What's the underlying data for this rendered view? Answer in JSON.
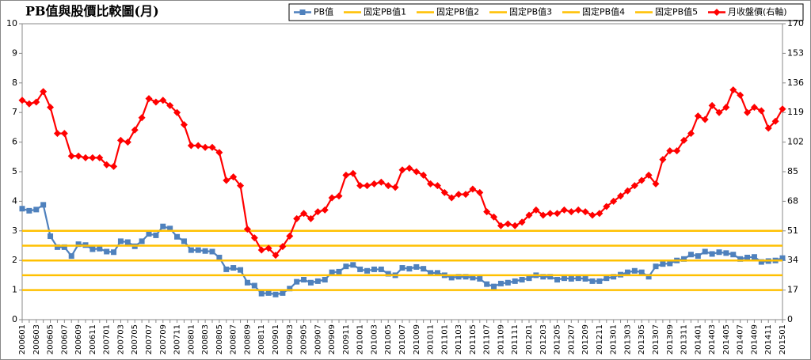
{
  "chart_data": {
    "type": "line",
    "title": "PB值與股價比較圖(月)",
    "legend": "top-right",
    "categories": [
      "200601",
      null,
      "200603",
      null,
      "200605",
      null,
      "200607",
      null,
      "200609",
      null,
      "200611",
      null,
      "200701",
      null,
      "200703",
      null,
      "200705",
      null,
      "200707",
      null,
      "200709",
      null,
      "200711",
      null,
      "200801",
      null,
      "200803",
      null,
      "200805",
      null,
      "200807",
      null,
      "200809",
      null,
      "200811",
      null,
      "200901",
      null,
      "200903",
      null,
      "200905",
      null,
      "200907",
      null,
      "200909",
      null,
      "200911",
      null,
      "201001",
      null,
      "201003",
      null,
      "201005",
      null,
      "201007",
      null,
      "201009",
      null,
      "201011",
      null,
      "201101",
      null,
      "201103",
      null,
      "201105",
      null,
      "201107",
      null,
      "201109",
      null,
      "201111",
      null,
      "201201",
      null,
      "201203",
      null,
      "201205",
      null,
      "201207",
      null,
      "201209",
      null,
      "201211",
      null,
      "201301",
      null,
      "201303",
      null,
      "201305",
      null,
      "201307",
      null,
      "201309",
      null,
      "201311",
      null,
      "201401",
      null,
      "201403",
      null,
      "201405",
      null,
      "201407",
      null,
      "201409",
      null,
      "201411",
      null,
      "201501"
    ],
    "ylim": [
      0,
      10
    ],
    "yticks": [
      0,
      1,
      2,
      3,
      4,
      5,
      6,
      7,
      8,
      9,
      10
    ],
    "y2lim": [
      0,
      170
    ],
    "y2ticks": [
      0,
      17,
      34,
      51,
      68,
      85,
      102,
      119,
      136,
      153,
      170
    ],
    "series": [
      {
        "name": "PB值",
        "color": "#4f81bd",
        "marker": "square",
        "values": [
          3.75,
          3.68,
          3.72,
          3.88,
          2.82,
          2.45,
          2.45,
          2.15,
          2.55,
          2.52,
          2.38,
          2.4,
          2.3,
          2.28,
          2.65,
          2.62,
          2.48,
          2.65,
          2.9,
          2.85,
          3.15,
          3.08,
          2.8,
          2.65,
          2.35,
          2.35,
          2.32,
          2.3,
          2.1,
          1.7,
          1.75,
          1.68,
          1.25,
          1.15,
          0.88,
          0.9,
          0.85,
          0.9,
          1.05,
          1.28,
          1.35,
          1.25,
          1.3,
          1.35,
          1.6,
          1.62,
          1.8,
          1.85,
          1.7,
          1.65,
          1.7,
          1.7,
          1.55,
          1.5,
          1.75,
          1.72,
          1.78,
          1.72,
          1.58,
          1.58,
          1.5,
          1.42,
          1.45,
          1.45,
          1.42,
          1.38,
          1.2,
          1.12,
          1.22,
          1.25,
          1.3,
          1.35,
          1.4,
          1.5,
          1.45,
          1.45,
          1.35,
          1.4,
          1.38,
          1.4,
          1.38,
          1.3,
          1.3,
          1.4,
          1.45,
          1.52,
          1.6,
          1.65,
          1.6,
          1.45,
          1.8,
          1.88,
          1.9,
          2.0,
          2.05,
          2.2,
          2.15,
          2.3,
          2.22,
          2.28,
          2.25,
          2.2,
          2.05,
          2.1,
          2.12,
          1.95,
          1.98,
          2.0,
          2.08
        ]
      },
      {
        "name": "固定PB值1",
        "color": "#ffc000",
        "values": [
          1,
          1,
          1,
          1,
          1,
          1,
          1,
          1,
          1,
          1,
          1,
          1,
          1,
          1,
          1,
          1,
          1,
          1,
          1,
          1,
          1,
          1,
          1,
          1,
          1,
          1,
          1,
          1,
          1,
          1,
          1,
          1,
          1,
          1,
          1,
          1,
          1,
          1,
          1,
          1,
          1,
          1,
          1,
          1,
          1,
          1,
          1,
          1,
          1,
          1,
          1,
          1,
          1,
          1,
          1,
          1,
          1,
          1,
          1,
          1,
          1,
          1,
          1,
          1,
          1,
          1,
          1,
          1,
          1,
          1,
          1,
          1,
          1,
          1,
          1,
          1,
          1,
          1,
          1,
          1,
          1,
          1,
          1,
          1,
          1,
          1,
          1,
          1,
          1,
          1,
          1,
          1,
          1,
          1,
          1,
          1,
          1,
          1,
          1,
          1,
          1,
          1,
          1,
          1,
          1,
          1,
          1,
          1,
          1
        ]
      },
      {
        "name": "固定PB值2",
        "color": "#ffc000",
        "values": [
          1.5,
          1.5,
          1.5,
          1.5,
          1.5,
          1.5,
          1.5,
          1.5,
          1.5,
          1.5,
          1.5,
          1.5,
          1.5,
          1.5,
          1.5,
          1.5,
          1.5,
          1.5,
          1.5,
          1.5,
          1.5,
          1.5,
          1.5,
          1.5,
          1.5,
          1.5,
          1.5,
          1.5,
          1.5,
          1.5,
          1.5,
          1.5,
          1.5,
          1.5,
          1.5,
          1.5,
          1.5,
          1.5,
          1.5,
          1.5,
          1.5,
          1.5,
          1.5,
          1.5,
          1.5,
          1.5,
          1.5,
          1.5,
          1.5,
          1.5,
          1.5,
          1.5,
          1.5,
          1.5,
          1.5,
          1.5,
          1.5,
          1.5,
          1.5,
          1.5,
          1.5,
          1.5,
          1.5,
          1.5,
          1.5,
          1.5,
          1.5,
          1.5,
          1.5,
          1.5,
          1.5,
          1.5,
          1.5,
          1.5,
          1.5,
          1.5,
          1.5,
          1.5,
          1.5,
          1.5,
          1.5,
          1.5,
          1.5,
          1.5,
          1.5,
          1.5,
          1.5,
          1.5,
          1.5,
          1.5,
          1.5,
          1.5,
          1.5,
          1.5,
          1.5,
          1.5,
          1.5,
          1.5,
          1.5,
          1.5,
          1.5,
          1.5,
          1.5,
          1.5,
          1.5,
          1.5,
          1.5,
          1.5,
          1.5
        ]
      },
      {
        "name": "固定PB值3",
        "color": "#ffc000",
        "values": [
          2,
          2,
          2,
          2,
          2,
          2,
          2,
          2,
          2,
          2,
          2,
          2,
          2,
          2,
          2,
          2,
          2,
          2,
          2,
          2,
          2,
          2,
          2,
          2,
          2,
          2,
          2,
          2,
          2,
          2,
          2,
          2,
          2,
          2,
          2,
          2,
          2,
          2,
          2,
          2,
          2,
          2,
          2,
          2,
          2,
          2,
          2,
          2,
          2,
          2,
          2,
          2,
          2,
          2,
          2,
          2,
          2,
          2,
          2,
          2,
          2,
          2,
          2,
          2,
          2,
          2,
          2,
          2,
          2,
          2,
          2,
          2,
          2,
          2,
          2,
          2,
          2,
          2,
          2,
          2,
          2,
          2,
          2,
          2,
          2,
          2,
          2,
          2,
          2,
          2,
          2,
          2,
          2,
          2,
          2,
          2,
          2,
          2,
          2,
          2,
          2,
          2,
          2,
          2,
          2,
          2,
          2,
          2,
          2
        ]
      },
      {
        "name": "固定PB值4",
        "color": "#ffc000",
        "values": [
          2.5,
          2.5,
          2.5,
          2.5,
          2.5,
          2.5,
          2.5,
          2.5,
          2.5,
          2.5,
          2.5,
          2.5,
          2.5,
          2.5,
          2.5,
          2.5,
          2.5,
          2.5,
          2.5,
          2.5,
          2.5,
          2.5,
          2.5,
          2.5,
          2.5,
          2.5,
          2.5,
          2.5,
          2.5,
          2.5,
          2.5,
          2.5,
          2.5,
          2.5,
          2.5,
          2.5,
          2.5,
          2.5,
          2.5,
          2.5,
          2.5,
          2.5,
          2.5,
          2.5,
          2.5,
          2.5,
          2.5,
          2.5,
          2.5,
          2.5,
          2.5,
          2.5,
          2.5,
          2.5,
          2.5,
          2.5,
          2.5,
          2.5,
          2.5,
          2.5,
          2.5,
          2.5,
          2.5,
          2.5,
          2.5,
          2.5,
          2.5,
          2.5,
          2.5,
          2.5,
          2.5,
          2.5,
          2.5,
          2.5,
          2.5,
          2.5,
          2.5,
          2.5,
          2.5,
          2.5,
          2.5,
          2.5,
          2.5,
          2.5,
          2.5,
          2.5,
          2.5,
          2.5,
          2.5,
          2.5,
          2.5,
          2.5,
          2.5,
          2.5,
          2.5,
          2.5,
          2.5,
          2.5,
          2.5,
          2.5,
          2.5,
          2.5,
          2.5,
          2.5,
          2.5,
          2.5,
          2.5,
          2.5,
          2.5
        ]
      },
      {
        "name": "固定PB值5",
        "color": "#ffc000",
        "values": [
          3,
          3,
          3,
          3,
          3,
          3,
          3,
          3,
          3,
          3,
          3,
          3,
          3,
          3,
          3,
          3,
          3,
          3,
          3,
          3,
          3,
          3,
          3,
          3,
          3,
          3,
          3,
          3,
          3,
          3,
          3,
          3,
          3,
          3,
          3,
          3,
          3,
          3,
          3,
          3,
          3,
          3,
          3,
          3,
          3,
          3,
          3,
          3,
          3,
          3,
          3,
          3,
          3,
          3,
          3,
          3,
          3,
          3,
          3,
          3,
          3,
          3,
          3,
          3,
          3,
          3,
          3,
          3,
          3,
          3,
          3,
          3,
          3,
          3,
          3,
          3,
          3,
          3,
          3,
          3,
          3,
          3,
          3,
          3,
          3,
          3,
          3,
          3,
          3,
          3,
          3,
          3,
          3,
          3,
          3,
          3,
          3,
          3,
          3,
          3,
          3,
          3,
          3,
          3,
          3,
          3,
          3,
          3,
          3
        ]
      },
      {
        "name": "月收盤價(右軸)",
        "color": "#ff0000",
        "marker": "diamond",
        "axis": "y2",
        "values": [
          126,
          124,
          125,
          131,
          122,
          107,
          107,
          94,
          94,
          93,
          93,
          93,
          89,
          88,
          103,
          102,
          109,
          116,
          127,
          125,
          126,
          123,
          119,
          112,
          100,
          100,
          99,
          99,
          96,
          80,
          82,
          77,
          52,
          47,
          40,
          41,
          37,
          42,
          48,
          58,
          61,
          58,
          62,
          63,
          70,
          71,
          83,
          84,
          77,
          77,
          78,
          79,
          77,
          76,
          86,
          87,
          85,
          83,
          78,
          77,
          73,
          70,
          72,
          72,
          75,
          73,
          62,
          59,
          54,
          55,
          54,
          56,
          60,
          63,
          60,
          61,
          61,
          63,
          62,
          63,
          62,
          60,
          61,
          65,
          68,
          71,
          74,
          77,
          80,
          83,
          78,
          92,
          97,
          97,
          103,
          107,
          117,
          115,
          123,
          119,
          122,
          132,
          129,
          119,
          122,
          120,
          110,
          114,
          121
        ]
      }
    ]
  }
}
